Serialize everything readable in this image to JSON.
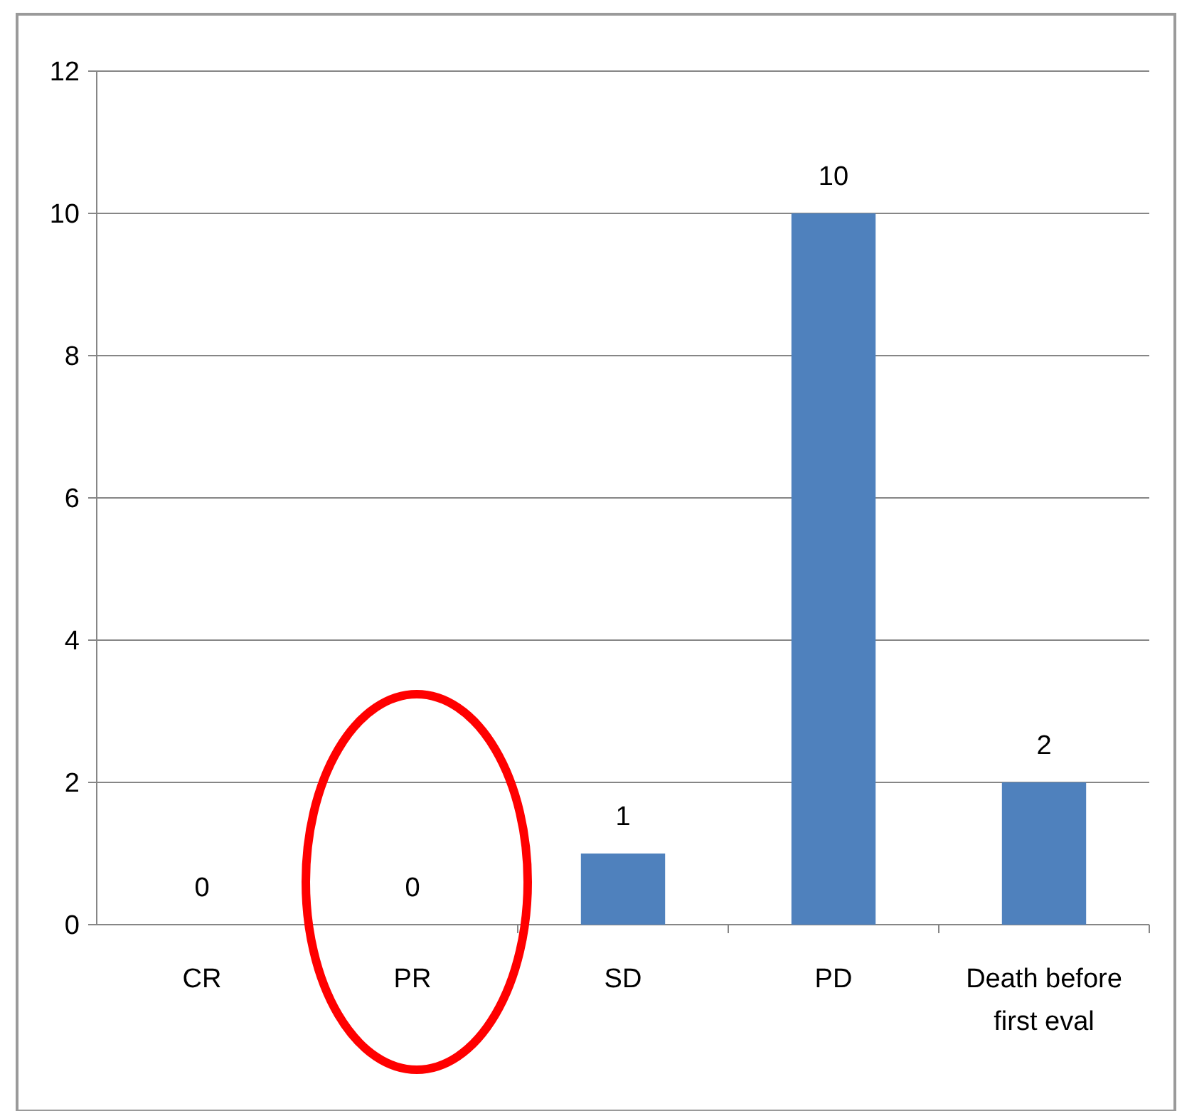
{
  "chart_data": {
    "type": "bar",
    "categories": [
      "CR",
      "PR",
      "SD",
      "PD",
      "Death before first eval"
    ],
    "values": [
      0,
      0,
      1,
      10,
      2
    ],
    "color": "#4f81bd",
    "ylim": [
      0,
      12
    ],
    "yticks": [
      0,
      2,
      4,
      6,
      8,
      10,
      12
    ],
    "grid": "y",
    "data_labels": true
  }
}
